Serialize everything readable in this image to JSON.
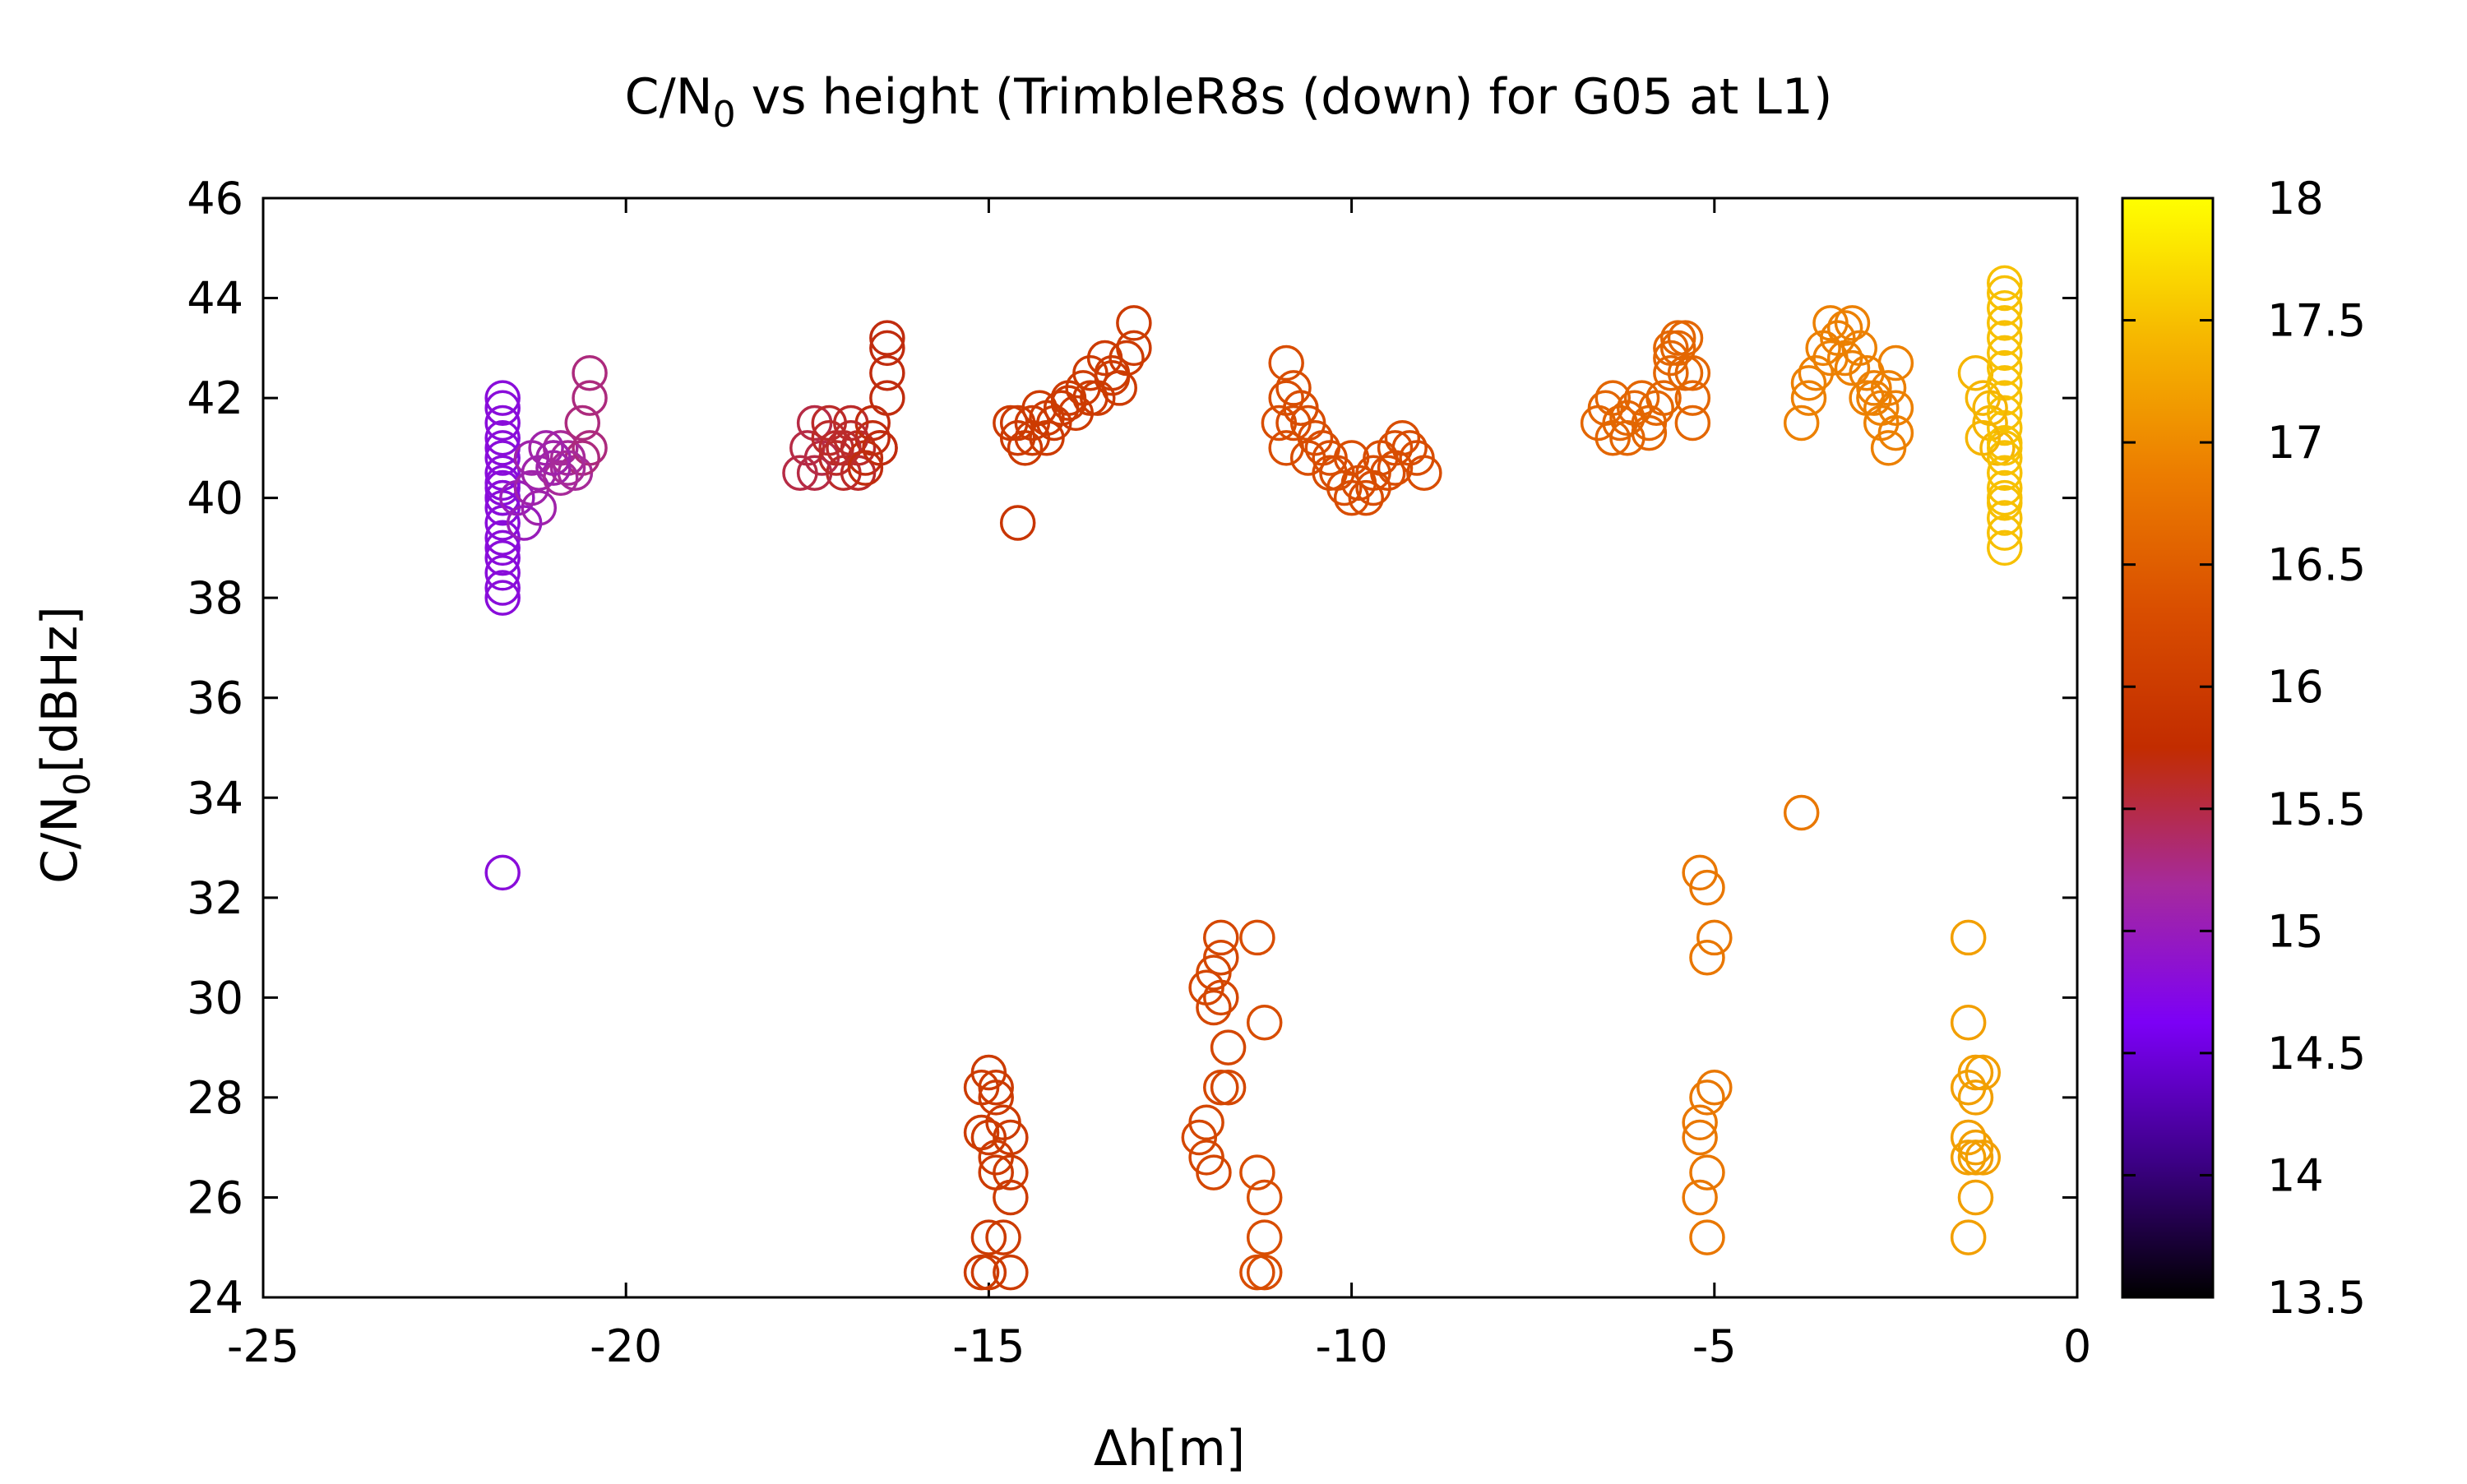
{
  "chart_data": {
    "type": "scatter",
    "title": {
      "prefix": "C/N",
      "sub": "0",
      "suffix": " vs height (TrimbleR8s (down) for G05 at L1)"
    },
    "xlabel": "Δh[m]",
    "ylabel": {
      "prefix": "C/N",
      "sub": "0",
      "suffix": "[dBHz]"
    },
    "xlim": [
      -25,
      0
    ],
    "ylim": [
      24,
      46
    ],
    "xticks": [
      -25,
      -20,
      -15,
      -10,
      -5,
      0
    ],
    "yticks": [
      24,
      26,
      28,
      30,
      32,
      34,
      36,
      38,
      40,
      42,
      44,
      46
    ],
    "grid": false,
    "marker": "open-circle",
    "colorbar": {
      "range": [
        13.5,
        18
      ],
      "ticks": [
        "13.5",
        "14",
        "14.5",
        "15",
        "15.5",
        "16",
        "16.5",
        "17",
        "17.5",
        "18"
      ],
      "colormap": "gnuplot-pm3d",
      "stops": [
        "#000000",
        "#3d0087",
        "#7c00f6",
        "#a62a9c",
        "#c22c00",
        "#d94e00",
        "#ec7d00",
        "#f6b800",
        "#ffff00"
      ]
    },
    "series": [
      {
        "x": [
          -21.7,
          -21.7,
          -21.7,
          -21.7,
          -21.7,
          -21.7,
          -21.7,
          -21.7,
          -21.7,
          -21.7,
          -21.7,
          -21.7,
          -21.7,
          -21.7,
          -21.7,
          -21.7,
          -21.7,
          -21.7,
          -21.7,
          -21.7
        ],
        "y": [
          38.0,
          38.2,
          38.5,
          38.8,
          39.0,
          39.2,
          39.5,
          39.8,
          40.0,
          40.2,
          40.5,
          40.8,
          41.0,
          41.2,
          41.5,
          41.8,
          42.0,
          32.5,
          40.0,
          40.3
        ],
        "z": [
          14.8,
          14.8,
          14.8,
          14.8,
          14.8,
          14.8,
          14.8,
          14.8,
          14.8,
          14.8,
          14.8,
          14.8,
          14.8,
          14.8,
          14.8,
          14.8,
          14.8,
          14.8,
          14.8,
          14.8
        ]
      },
      {
        "x": [
          -21.5,
          -21.3,
          -21.2,
          -21.0,
          -20.9,
          -20.8,
          -20.7,
          -20.6,
          -20.5,
          -20.5,
          -20.6,
          -20.5,
          -21.1,
          -21.0,
          -20.9,
          -21.2,
          -21.4,
          -21.3,
          -20.8,
          -21.0
        ],
        "y": [
          40.0,
          40.2,
          40.5,
          40.8,
          41.0,
          40.8,
          40.5,
          40.8,
          41.0,
          42.0,
          41.5,
          42.5,
          41.0,
          40.6,
          40.4,
          39.8,
          39.5,
          40.8,
          40.6,
          40.8
        ],
        "z": [
          15.0,
          15.1,
          15.1,
          15.1,
          15.2,
          15.2,
          15.2,
          15.3,
          15.3,
          15.3,
          15.3,
          15.3,
          15.1,
          15.1,
          15.2,
          15.1,
          15.0,
          15.1,
          15.2,
          15.1
        ]
      },
      {
        "x": [
          -17.6,
          -17.5,
          -17.4,
          -17.3,
          -17.2,
          -17.1,
          -17.0,
          -16.9,
          -16.8,
          -16.7,
          -16.6,
          -16.5,
          -16.4,
          -16.4,
          -16.4,
          -16.4,
          -17.4,
          -17.2,
          -17.0,
          -16.8,
          -16.6,
          -17.1,
          -16.9,
          -16.7,
          -16.5
        ],
        "y": [
          40.5,
          41.0,
          41.5,
          40.8,
          41.2,
          41.0,
          40.5,
          41.5,
          41.0,
          40.8,
          41.2,
          41.0,
          42.0,
          42.5,
          43.0,
          43.2,
          40.5,
          41.5,
          41.0,
          40.5,
          41.5,
          40.8,
          41.2,
          40.6,
          41.0
        ],
        "z": [
          15.5,
          15.5,
          15.5,
          15.5,
          15.6,
          15.6,
          15.6,
          15.6,
          15.6,
          15.7,
          15.7,
          15.7,
          15.7,
          15.7,
          15.7,
          15.7,
          15.5,
          15.6,
          15.6,
          15.6,
          15.7,
          15.6,
          15.6,
          15.7,
          15.7
        ]
      },
      {
        "x": [
          -14.7,
          -14.6,
          -14.5,
          -14.4,
          -14.3,
          -14.2,
          -14.1,
          -14.0,
          -13.9,
          -13.8,
          -13.7,
          -13.6,
          -13.5,
          -13.4,
          -13.3,
          -13.2,
          -13.1,
          -13.0,
          -13.0,
          -14.6,
          -14.4,
          -14.2,
          -13.9,
          -13.6,
          -13.3,
          -14.6
        ],
        "y": [
          41.5,
          41.2,
          41.0,
          41.5,
          41.8,
          41.2,
          41.5,
          41.8,
          42.0,
          41.7,
          42.2,
          42.5,
          42.0,
          42.8,
          42.5,
          42.2,
          42.8,
          43.5,
          43.0,
          41.5,
          41.2,
          41.6,
          41.9,
          42.0,
          42.4,
          39.5
        ],
        "z": [
          16.0,
          16.0,
          16.0,
          16.0,
          16.0,
          16.0,
          16.0,
          16.0,
          16.0,
          16.0,
          16.0,
          16.0,
          16.0,
          16.0,
          16.0,
          16.0,
          16.0,
          16.0,
          16.0,
          16.0,
          16.0,
          16.0,
          16.0,
          16.0,
          16.0,
          15.9
        ]
      },
      {
        "x": [
          -15.1,
          -15.0,
          -14.9,
          -14.8,
          -14.7,
          -15.0,
          -14.9,
          -14.7,
          -15.1,
          -14.9,
          -14.7,
          -15.0,
          -14.8,
          -15.1,
          -15.0,
          -14.9,
          -14.7
        ],
        "y": [
          28.2,
          28.5,
          28.2,
          27.5,
          27.2,
          27.2,
          26.8,
          26.5,
          27.3,
          26.5,
          26.0,
          25.2,
          25.2,
          24.5,
          24.5,
          28.0,
          24.5
        ],
        "z": [
          16.0,
          16.0,
          16.0,
          16.0,
          16.0,
          16.0,
          16.0,
          16.0,
          16.0,
          16.0,
          16.0,
          16.0,
          16.0,
          16.0,
          16.0,
          16.0,
          16.0
        ]
      },
      {
        "x": [
          -10.9,
          -10.8,
          -10.7,
          -10.6,
          -10.5,
          -10.4,
          -10.3,
          -10.2,
          -10.1,
          -10.0,
          -9.9,
          -9.8,
          -9.7,
          -9.6,
          -9.5,
          -9.4,
          -9.3,
          -9.2,
          -9.1,
          -9.0,
          -10.9,
          -10.8,
          -10.7,
          -11.0,
          -10.9,
          -10.6,
          -10.3,
          -10.0,
          -9.7,
          -9.4
        ],
        "y": [
          42.7,
          42.2,
          41.8,
          41.5,
          41.2,
          41.0,
          40.8,
          40.5,
          40.2,
          40.0,
          40.3,
          40.0,
          40.5,
          40.8,
          40.5,
          41.0,
          41.2,
          41.0,
          40.8,
          40.5,
          41.0,
          41.5,
          41.8,
          41.5,
          42.0,
          40.8,
          40.5,
          40.8,
          40.2,
          40.6
        ],
        "z": [
          16.3,
          16.3,
          16.3,
          16.3,
          16.3,
          16.3,
          16.3,
          16.3,
          16.3,
          16.3,
          16.3,
          16.3,
          16.3,
          16.3,
          16.3,
          16.3,
          16.3,
          16.3,
          16.3,
          16.3,
          16.3,
          16.3,
          16.3,
          16.3,
          16.3,
          16.3,
          16.3,
          16.3,
          16.3,
          16.3
        ]
      },
      {
        "x": [
          -11.8,
          -11.9,
          -12.0,
          -11.8,
          -11.9,
          -11.7,
          -11.8,
          -12.0,
          -12.1,
          -12.0,
          -11.9,
          -11.7,
          -11.3,
          -11.2,
          -11.3,
          -11.2,
          -11.2,
          -11.3,
          -11.2,
          -11.8
        ],
        "y": [
          31.2,
          30.5,
          30.2,
          30.0,
          29.8,
          29.0,
          28.2,
          27.5,
          27.2,
          26.8,
          26.5,
          28.2,
          31.2,
          29.5,
          26.5,
          26.0,
          25.2,
          24.5,
          24.5,
          30.8
        ],
        "z": [
          16.2,
          16.2,
          16.2,
          16.2,
          16.2,
          16.2,
          16.2,
          16.2,
          16.2,
          16.2,
          16.2,
          16.2,
          16.3,
          16.3,
          16.3,
          16.3,
          16.3,
          16.3,
          16.3,
          16.2
        ]
      },
      {
        "x": [
          -6.6,
          -6.5,
          -6.4,
          -6.3,
          -6.2,
          -6.1,
          -6.0,
          -5.9,
          -5.8,
          -5.7,
          -5.6,
          -5.5,
          -5.4,
          -5.3,
          -5.6,
          -5.5,
          -5.4,
          -5.3,
          -5.6,
          -6.4,
          -6.2,
          -5.9,
          -5.3
        ],
        "y": [
          41.5,
          41.8,
          42.0,
          41.5,
          41.2,
          41.8,
          42.0,
          41.5,
          41.8,
          42.0,
          43.0,
          43.2,
          42.5,
          42.0,
          42.5,
          43.0,
          43.2,
          41.5,
          42.8,
          41.2,
          41.6,
          41.3,
          42.5
        ],
        "z": [
          16.6,
          16.6,
          16.6,
          16.6,
          16.6,
          16.6,
          16.6,
          16.6,
          16.6,
          16.6,
          16.6,
          16.6,
          16.6,
          16.6,
          16.6,
          16.6,
          16.6,
          16.6,
          16.6,
          16.6,
          16.6,
          16.6,
          16.6
        ]
      },
      {
        "x": [
          -5.2,
          -5.1,
          -5.0,
          -5.1,
          -5.0,
          -5.1,
          -5.2,
          -5.2,
          -5.1,
          -5.2,
          -5.1,
          -3.8
        ],
        "y": [
          32.5,
          32.2,
          31.2,
          30.8,
          28.2,
          28.0,
          27.5,
          27.2,
          26.5,
          26.0,
          25.2,
          33.7
        ],
        "z": [
          16.8,
          16.8,
          16.8,
          16.8,
          16.8,
          16.8,
          16.8,
          16.8,
          16.8,
          16.8,
          16.8,
          16.8
        ]
      },
      {
        "x": [
          -3.8,
          -3.7,
          -3.6,
          -3.5,
          -3.4,
          -3.3,
          -3.2,
          -3.1,
          -3.0,
          -2.9,
          -2.8,
          -2.7,
          -2.6,
          -2.5,
          -2.5,
          -2.5,
          -2.6,
          -3.7,
          -3.4,
          -3.1,
          -2.8,
          -3.2,
          -2.9,
          -2.7
        ],
        "y": [
          41.5,
          42.0,
          42.5,
          43.0,
          43.5,
          43.2,
          42.8,
          43.5,
          43.0,
          42.5,
          42.0,
          41.5,
          42.2,
          42.7,
          41.8,
          41.3,
          41.0,
          42.3,
          42.8,
          42.6,
          42.2,
          43.4,
          42.0,
          41.8
        ],
        "z": [
          16.9,
          16.9,
          16.9,
          16.9,
          16.9,
          16.9,
          16.9,
          16.9,
          16.9,
          16.9,
          16.9,
          16.9,
          16.9,
          16.9,
          16.9,
          16.9,
          16.9,
          16.9,
          16.9,
          16.9,
          16.9,
          16.9,
          16.9,
          16.9
        ]
      },
      {
        "x": [
          -1.5,
          -1.5,
          -1.4,
          -1.5,
          -1.4,
          -1.5,
          -1.4,
          -1.5,
          -1.4,
          -1.3,
          -1.4,
          -1.5,
          -1.3
        ],
        "y": [
          31.2,
          29.5,
          28.5,
          28.2,
          28.0,
          27.2,
          27.0,
          26.8,
          26.8,
          28.5,
          26.0,
          25.2,
          26.8
        ],
        "z": [
          17.2,
          17.2,
          17.2,
          17.2,
          17.2,
          17.2,
          17.2,
          17.2,
          17.2,
          17.2,
          17.2,
          17.2,
          17.2
        ]
      },
      {
        "x": [
          -1.4,
          -1.3,
          -1.2,
          -1.1,
          -1.0,
          -1.0,
          -1.0,
          -1.0,
          -1.0,
          -1.0,
          -1.0,
          -1.0,
          -1.0,
          -1.0,
          -1.0,
          -1.0,
          -1.0,
          -1.0,
          -1.0,
          -1.0,
          -1.0,
          -1.0,
          -1.0,
          -1.0,
          -1.0,
          -1.2,
          -1.3
        ],
        "y": [
          42.5,
          42.0,
          41.5,
          41.0,
          39.0,
          39.3,
          39.6,
          39.9,
          40.2,
          40.5,
          40.8,
          41.1,
          41.4,
          41.7,
          42.0,
          42.3,
          42.6,
          42.9,
          43.2,
          43.5,
          43.8,
          44.1,
          44.3,
          40.0,
          41.0,
          41.8,
          41.2
        ],
        "z": [
          17.4,
          17.4,
          17.4,
          17.4,
          17.5,
          17.5,
          17.5,
          17.5,
          17.5,
          17.5,
          17.5,
          17.5,
          17.5,
          17.5,
          17.5,
          17.5,
          17.5,
          17.5,
          17.5,
          17.5,
          17.5,
          17.5,
          17.5,
          17.5,
          17.5,
          17.4,
          17.4
        ]
      }
    ]
  }
}
